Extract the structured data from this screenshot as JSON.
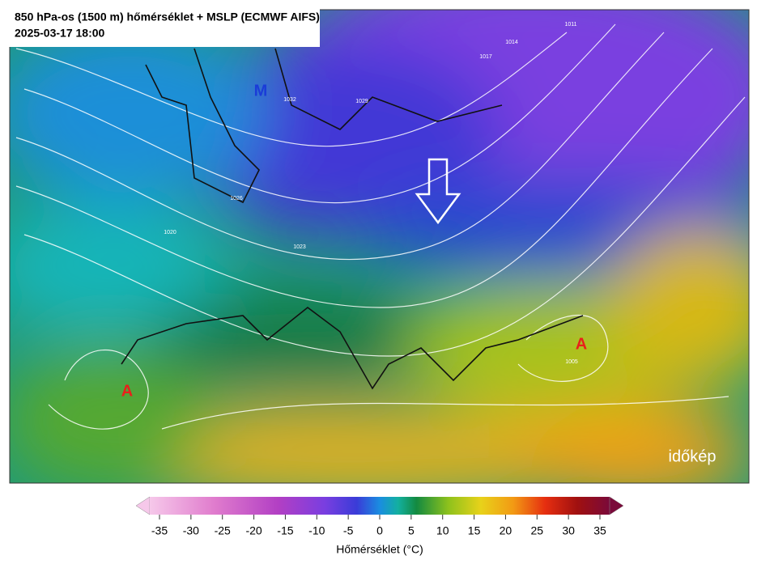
{
  "header": {
    "title": "850 hPa-os (1500 m) hőmérséklet + MSLP (ECMWF AIFS)",
    "date": "2025-03-17 18:00"
  },
  "map_labels": {
    "low": "M",
    "high_west": "A",
    "high_east": "A"
  },
  "isobar_labels": [
    "1005",
    "1011",
    "1014",
    "1017",
    "1020",
    "1023",
    "1026",
    "1029",
    "1032"
  ],
  "colorbar": {
    "ticks": [
      -35,
      -30,
      -25,
      -20,
      -15,
      -10,
      -5,
      0,
      5,
      10,
      15,
      20,
      25,
      30,
      35
    ],
    "label": "Hőmérséklet (°C)"
  },
  "logo": "időkép"
}
